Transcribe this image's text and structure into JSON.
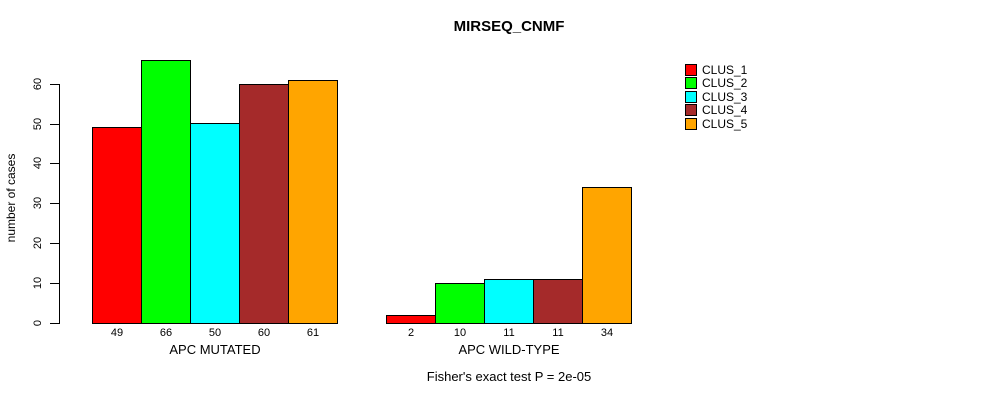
{
  "chart_data": {
    "type": "bar",
    "title": "MIRSEQ_CNMF",
    "xlabel": "",
    "ylabel": "number of cases",
    "annotation": "Fisher's exact test P = 2e-05",
    "yticks": [
      0,
      10,
      20,
      30,
      40,
      50,
      60
    ],
    "ylim": [
      0,
      66
    ],
    "grid": false,
    "legend_position": "right",
    "bar_value_labels": true,
    "series_labels": [
      "CLUS_1",
      "CLUS_2",
      "CLUS_3",
      "CLUS_4",
      "CLUS_5"
    ],
    "colors": [
      "#FF0000",
      "#00FF00",
      "#00FFFF",
      "#A52A2A",
      "#FFA500"
    ],
    "groups": [
      {
        "label": "APC MUTATED",
        "values": [
          49,
          66,
          50,
          60,
          61
        ]
      },
      {
        "label": "APC WILD-TYPE",
        "values": [
          2,
          10,
          11,
          11,
          34
        ]
      }
    ]
  }
}
